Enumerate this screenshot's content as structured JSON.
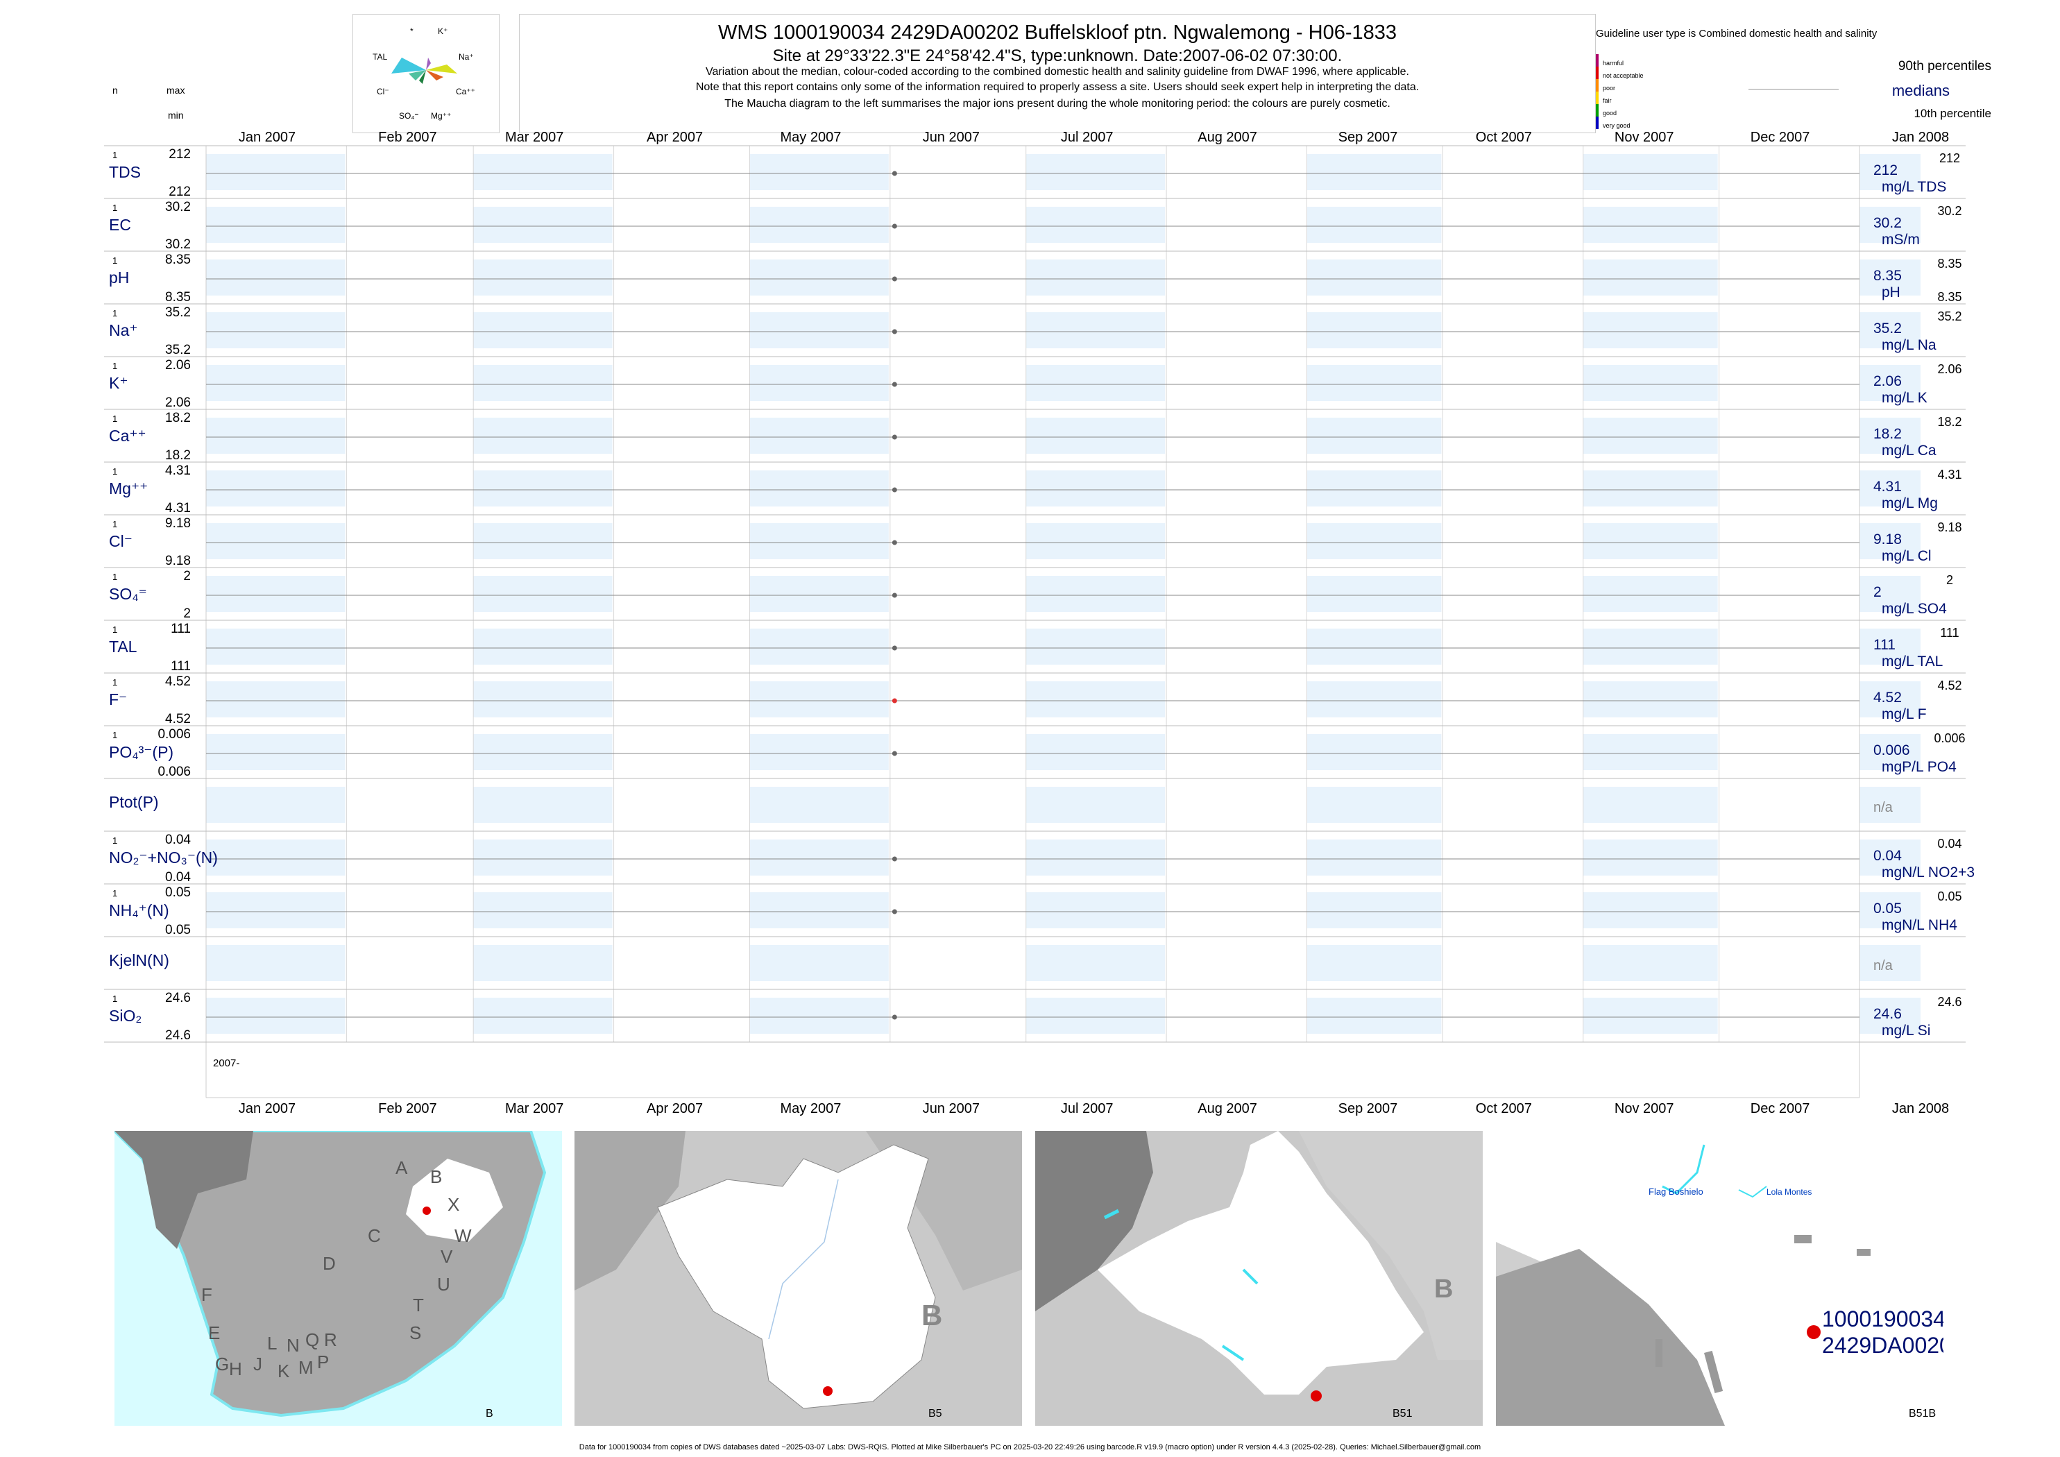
{
  "header": {
    "title": "WMS 1000190034 2429DA00202 Buffelskloof ptn. Ngwalemong - H06-1833",
    "site": "Site at 29°33'22.3\"E 24°58'42.4\"S, type:unknown. Date:2007-06-02 07:30:00.",
    "note1": "Variation about the median,  colour-coded according to the combined domestic health and salinity guideline from DWAF 1996, where applicable.",
    "note2": "Note that this report contains only some of the information required to properly assess a site. Users should seek expert help in interpreting the data.",
    "note3": "The Maucha diagram to the left summarises the major ions present during the whole monitoring period: the colours are purely cosmetic."
  },
  "maucha": {
    "labels": [
      "*",
      "K⁺",
      "TAL",
      "Na⁺",
      "Cl⁻",
      "Ca⁺⁺",
      "SO₄⁼",
      "Mg⁺⁺"
    ]
  },
  "left_header": {
    "n": "n",
    "max": "max",
    "min": "min"
  },
  "legend": {
    "guideline": "Guideline user type is Combined domestic health and salinity",
    "levels": [
      "harmful",
      "not acceptable",
      "poor",
      "fair",
      "good",
      "very good"
    ],
    "level_colors": [
      "#b0006a",
      "#e00000",
      "#ff8c00",
      "#ffd700",
      "#00a000",
      "#0000c0"
    ],
    "p90": "90th percentiles",
    "medians": "medians",
    "p10": "10th percentile"
  },
  "chart_data": {
    "type": "scatter",
    "x_range": [
      "2007-01-01",
      "2008-01-01"
    ],
    "month_labels": [
      "Jan 2007",
      "Feb 2007",
      "Mar 2007",
      "Apr 2007",
      "May 2007",
      "Jun 2007",
      "Jul 2007",
      "Aug 2007",
      "Sep 2007",
      "Oct 2007",
      "Nov 2007",
      "Dec 2007",
      "Jan 2008"
    ],
    "bottom_year_label": "2007-",
    "sample_date": "2007-06-02",
    "series": [
      {
        "name": "TDS",
        "n": "1",
        "max": "212",
        "min": "212",
        "value": "212",
        "right_max": "212",
        "right_min": "",
        "unit": "mg/L TDS",
        "dot": "#666666"
      },
      {
        "name": "EC",
        "n": "1",
        "max": "30.2",
        "min": "30.2",
        "value": "30.2",
        "right_max": "30.2",
        "right_min": "",
        "unit": "mS/m",
        "dot": "#666666"
      },
      {
        "name": "pH",
        "n": "1",
        "max": "8.35",
        "min": "8.35",
        "value": "8.35",
        "right_max": "8.35",
        "right_min": "8.35",
        "unit": "pH",
        "dot": "#666666"
      },
      {
        "name": "Na⁺",
        "n": "1",
        "max": "35.2",
        "min": "35.2",
        "value": "35.2",
        "right_max": "35.2",
        "right_min": "",
        "unit": "mg/L Na",
        "dot": "#666666"
      },
      {
        "name": "K⁺",
        "n": "1",
        "max": "2.06",
        "min": "2.06",
        "value": "2.06",
        "right_max": "2.06",
        "right_min": "",
        "unit": "mg/L K",
        "dot": "#666666"
      },
      {
        "name": "Ca⁺⁺",
        "n": "1",
        "max": "18.2",
        "min": "18.2",
        "value": "18.2",
        "right_max": "18.2",
        "right_min": "",
        "unit": "mg/L Ca",
        "dot": "#666666"
      },
      {
        "name": "Mg⁺⁺",
        "n": "1",
        "max": "4.31",
        "min": "4.31",
        "value": "4.31",
        "right_max": "4.31",
        "right_min": "",
        "unit": "mg/L Mg",
        "dot": "#666666"
      },
      {
        "name": "Cl⁻",
        "n": "1",
        "max": "9.18",
        "min": "9.18",
        "value": "9.18",
        "right_max": "9.18",
        "right_min": "",
        "unit": "mg/L Cl",
        "dot": "#666666"
      },
      {
        "name": "SO₄⁼",
        "n": "1",
        "max": "2",
        "min": "2",
        "value": "2",
        "right_max": "2",
        "right_min": "",
        "unit": "mg/L SO4",
        "dot": "#666666"
      },
      {
        "name": "TAL",
        "n": "1",
        "max": "111",
        "min": "111",
        "value": "111",
        "right_max": "111",
        "right_min": "",
        "unit": "mg/L TAL",
        "dot": "#666666"
      },
      {
        "name": "F⁻",
        "n": "1",
        "max": "4.52",
        "min": "4.52",
        "value": "4.52",
        "right_max": "4.52",
        "right_min": "",
        "unit": "mg/L F",
        "dot": "#e03030"
      },
      {
        "name": "PO₄³⁻(P)",
        "n": "1",
        "max": "0.006",
        "min": "0.006",
        "value": "0.006",
        "right_max": "0.006",
        "right_min": "",
        "unit": "mgP/L PO4",
        "dot": "#666666"
      },
      {
        "name": "Ptot(P)",
        "n": "",
        "max": "",
        "min": "",
        "value": "n/a",
        "right_max": "",
        "right_min": "",
        "unit": "",
        "dot": ""
      },
      {
        "name": "NO₂⁻+NO₃⁻(N)",
        "n": "1",
        "max": "0.04",
        "min": "0.04",
        "value": "0.04",
        "right_max": "0.04",
        "right_min": "",
        "unit": "mgN/L NO2+3",
        "dot": "#666666"
      },
      {
        "name": "NH₄⁺(N)",
        "n": "1",
        "max": "0.05",
        "min": "0.05",
        "value": "0.05",
        "right_max": "0.05",
        "right_min": "",
        "unit": "mgN/L NH4",
        "dot": "#666666"
      },
      {
        "name": "KjelN(N)",
        "n": "",
        "max": "",
        "min": "",
        "value": "n/a",
        "right_max": "",
        "right_min": "",
        "unit": "",
        "dot": ""
      },
      {
        "name": "SiO₂",
        "n": "1",
        "max": "24.6",
        "min": "24.6",
        "value": "24.6",
        "right_max": "24.6",
        "right_min": "",
        "unit": "mg/L Si",
        "dot": "#666666"
      }
    ]
  },
  "maps": [
    {
      "caption": "B",
      "letters": [
        "A",
        "B",
        "X",
        "C",
        "W",
        "D",
        "V",
        "U",
        "F",
        "T",
        "E",
        "S",
        "L",
        "N",
        "Q",
        "R",
        "G",
        "H",
        "J",
        "K",
        "M",
        "P"
      ]
    },
    {
      "caption": "B5",
      "region": "B"
    },
    {
      "caption": "B51",
      "region": "B"
    },
    {
      "caption": "B51B",
      "places": [
        "Flag Boshielo",
        "Lola Montes"
      ],
      "site_label_1": "1000190034",
      "site_label_2": "2429DA0020"
    }
  ],
  "footer": "Data for 1000190034 from copies of DWS databases dated ~2025-03-07 Labs: DWS-RQIS. Plotted at Mike Silberbauer's PC on 2025-03-20 22:49:26 using barcode.R v19.9 (macro option) under R version 4.4.3 (2025-02-28). Queries: Michael.Silberbauer@gmail.com"
}
